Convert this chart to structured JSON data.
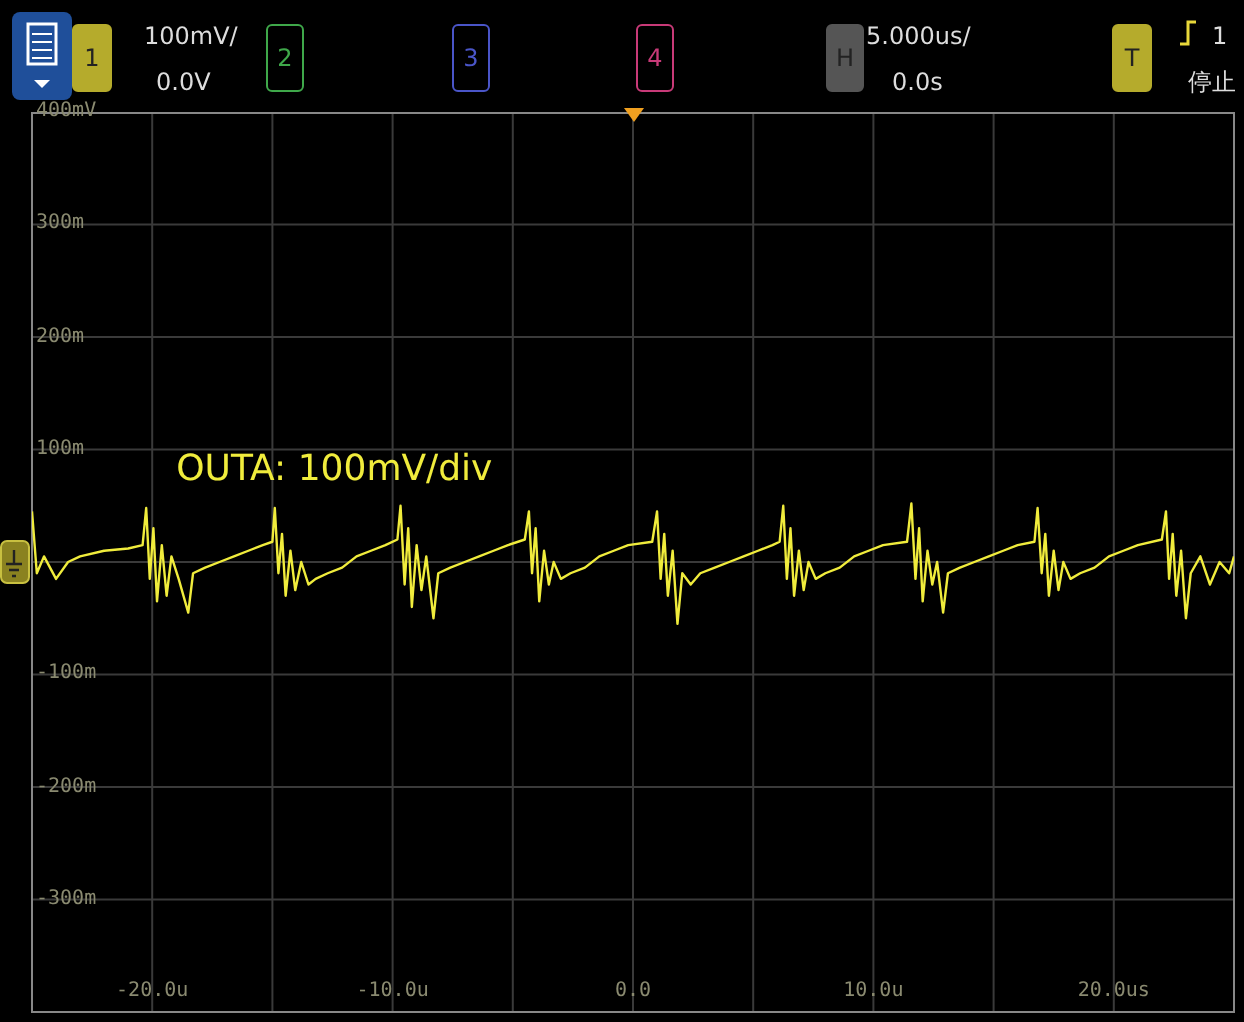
{
  "chart_data": {
    "type": "line",
    "annotations": [
      "1",
      "100mV/",
      "0.0V",
      "2",
      "3",
      "4",
      "H",
      "5.000us/",
      "0.0s",
      "T",
      "1",
      "停止",
      "OUTA: 100mV/div"
    ],
    "xlim": [
      -25,
      25
    ],
    "xticks": [
      {
        "value": -20,
        "label": "-20.0u"
      },
      {
        "value": -15,
        "label": null
      },
      {
        "value": -10,
        "label": "-10.0u"
      },
      {
        "value": -5,
        "label": null
      },
      {
        "value": 0,
        "label": "0.0"
      },
      {
        "value": 5,
        "label": null
      },
      {
        "value": 10,
        "label": "10.0u"
      },
      {
        "value": 15,
        "label": null
      },
      {
        "value": 20,
        "label": "20.0us"
      }
    ],
    "ylim": [
      -400,
      400
    ],
    "yticks": [
      {
        "value": 400,
        "label": "400mV"
      },
      {
        "value": 300,
        "label": "300m"
      },
      {
        "value": 200,
        "label": "200m"
      },
      {
        "value": 100,
        "label": "100m"
      },
      {
        "value": 0,
        "label": null
      },
      {
        "value": -100,
        "label": "-100m"
      },
      {
        "value": -200,
        "label": "-200m"
      },
      {
        "value": -300,
        "label": "-300m"
      },
      {
        "value": -400,
        "label": null
      }
    ],
    "grid": true,
    "marker": "none",
    "line_style": "solid",
    "legend": false,
    "series": [
      {
        "color": "#f0ec3c",
        "x": [
          -25,
          -24.8,
          -24.5,
          -24,
          -23.5,
          -23,
          -22,
          -21,
          -20.4,
          -20.25,
          -20.1,
          -19.95,
          -19.8,
          -19.6,
          -19.4,
          -19.2,
          -18.9,
          -18.5,
          -18.3,
          -17.8,
          -17.2,
          -16.6,
          -16,
          -15.4,
          -15,
          -14.9,
          -14.75,
          -14.6,
          -14.45,
          -14.25,
          -14.05,
          -13.8,
          -13.5,
          -13.2,
          -12.7,
          -12.1,
          -11.5,
          -10.9,
          -10.3,
          -9.8,
          -9.67,
          -9.5,
          -9.35,
          -9.2,
          -9,
          -8.8,
          -8.6,
          -8.3,
          -8.1,
          -7.6,
          -7,
          -6.4,
          -5.8,
          -5.2,
          -4.5,
          -4.33,
          -4.2,
          -4.05,
          -3.9,
          -3.7,
          -3.5,
          -3.3,
          -3,
          -2.6,
          -2,
          -1.4,
          -0.8,
          -0.2,
          0.8,
          1,
          1.15,
          1.3,
          1.45,
          1.65,
          1.85,
          2.05,
          2.4,
          2.8,
          3.4,
          4,
          4.6,
          5.2,
          5.8,
          6.1,
          6.25,
          6.4,
          6.55,
          6.7,
          6.9,
          7.1,
          7.3,
          7.6,
          8,
          8.6,
          9.2,
          9.8,
          10.4,
          11.4,
          11.58,
          11.75,
          11.9,
          12.05,
          12.25,
          12.45,
          12.65,
          12.9,
          13.1,
          13.6,
          14.2,
          14.8,
          15.4,
          16,
          16.7,
          16.83,
          17,
          17.15,
          17.3,
          17.5,
          17.7,
          17.9,
          18.2,
          18.6,
          19.2,
          19.8,
          20.4,
          21,
          22,
          22.17,
          22.3,
          22.45,
          22.6,
          22.8,
          23,
          23.2,
          23.6,
          24,
          24.4,
          24.8,
          25
        ],
        "values": [
          45,
          -10,
          5,
          -15,
          0,
          5,
          10,
          12,
          15,
          48,
          -15,
          30,
          -35,
          15,
          -30,
          5,
          -15,
          -45,
          -10,
          -5,
          0,
          5,
          10,
          15,
          18,
          48,
          -10,
          25,
          -30,
          10,
          -25,
          0,
          -20,
          -15,
          -10,
          -5,
          5,
          10,
          15,
          20,
          50,
          -20,
          30,
          -40,
          15,
          -25,
          5,
          -50,
          -10,
          -5,
          0,
          5,
          10,
          15,
          20,
          45,
          -10,
          30,
          -35,
          10,
          -20,
          0,
          -15,
          -10,
          -5,
          5,
          10,
          15,
          18,
          45,
          -15,
          25,
          -30,
          10,
          -55,
          -10,
          -20,
          -10,
          -5,
          0,
          5,
          10,
          15,
          18,
          50,
          -15,
          30,
          -30,
          10,
          -25,
          0,
          -15,
          -10,
          -5,
          5,
          10,
          15,
          18,
          52,
          -15,
          30,
          -35,
          10,
          -20,
          0,
          -45,
          -10,
          -5,
          0,
          5,
          10,
          15,
          18,
          48,
          -10,
          25,
          -30,
          10,
          -25,
          0,
          -15,
          -10,
          -5,
          5,
          10,
          15,
          20,
          45,
          -15,
          25,
          -30,
          10,
          -50,
          -10,
          5,
          -20,
          0,
          -10,
          5
        ]
      }
    ]
  }
}
